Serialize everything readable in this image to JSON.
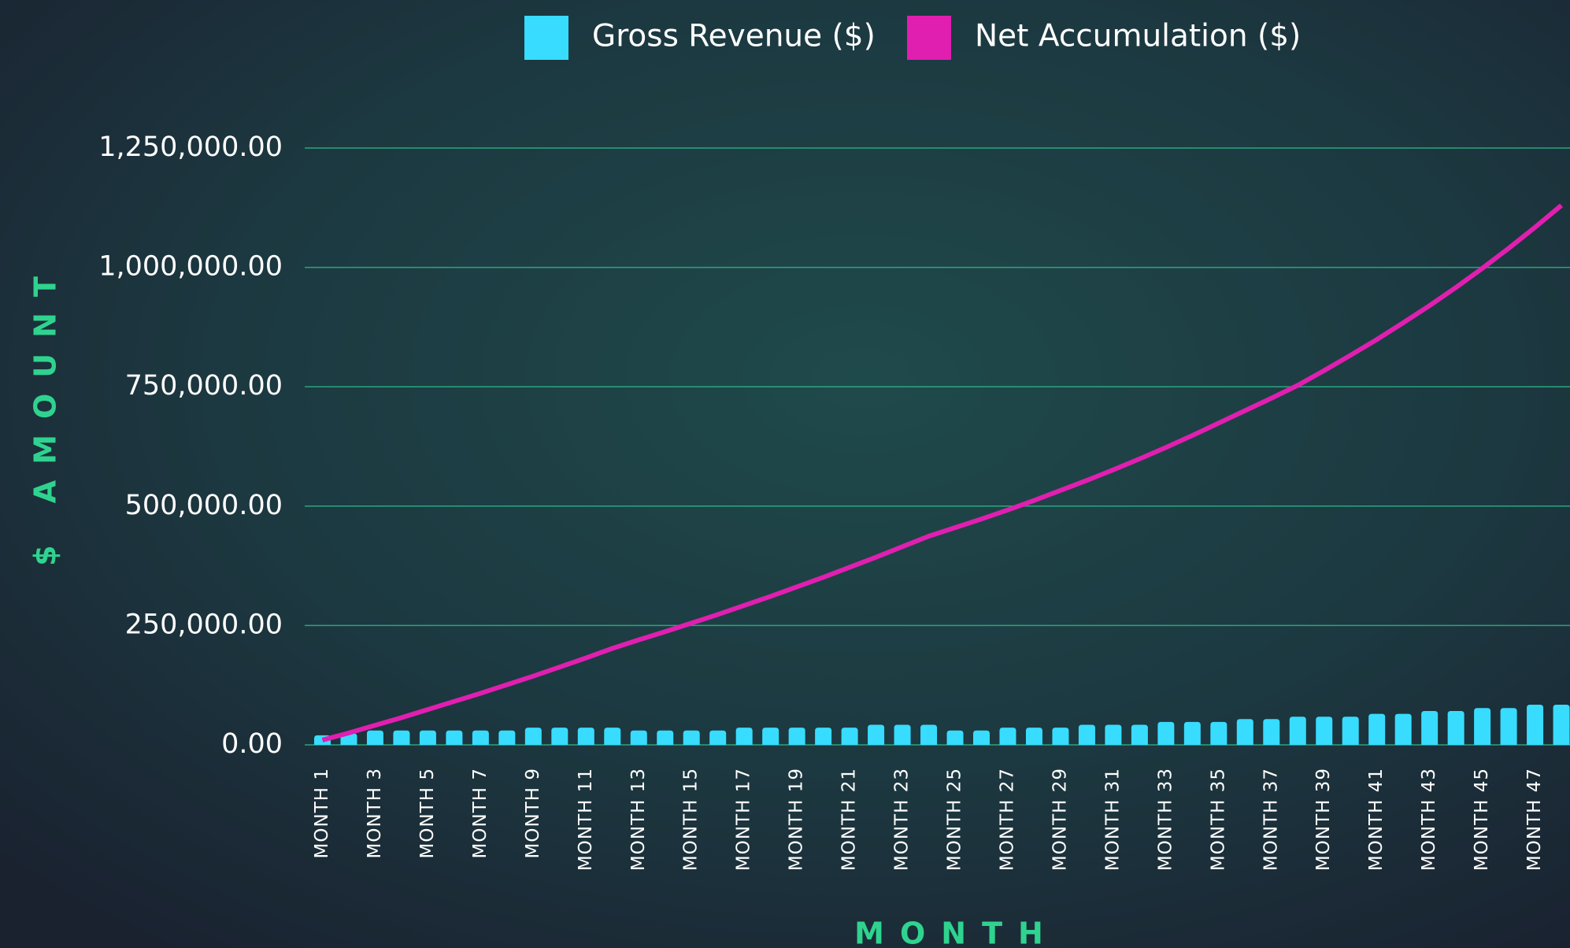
{
  "chart_data": {
    "type": "bar_line",
    "legend": "top",
    "grid": true,
    "x_label": "MONTH",
    "y_label": "$ AMOUNT",
    "categories": [
      "MONTH 1",
      null,
      "MONTH 3",
      null,
      "MONTH 5",
      null,
      "MONTH 7",
      null,
      "MONTH 9",
      null,
      "MONTH 11",
      null,
      "MONTH 13",
      null,
      "MONTH 15",
      null,
      "MONTH 17",
      null,
      "MONTH 19",
      null,
      "MONTH 21",
      null,
      "MONTH 23",
      null,
      "MONTH 25",
      null,
      "MONTH 27",
      null,
      "MONTH 29",
      null,
      "MONTH 31",
      null,
      "MONTH 33",
      null,
      "MONTH 35",
      null,
      "MONTH 37",
      null,
      "MONTH 39",
      null,
      "MONTH 41",
      null,
      "MONTH 43",
      null,
      "MONTH 45",
      null,
      "MONTH 47",
      null
    ],
    "series": [
      {
        "name": "Gross Revenue ($)",
        "type": "bar",
        "color": "#38dcff",
        "values": [
          20000,
          24000,
          30000,
          30000,
          30000,
          30000,
          30000,
          30000,
          36000,
          36000,
          36000,
          36000,
          30000,
          30000,
          30000,
          30000,
          36000,
          36000,
          36000,
          36000,
          36000,
          42000,
          42000,
          42000,
          30000,
          30000,
          36000,
          36000,
          36000,
          42000,
          42000,
          42000,
          48000,
          48000,
          48000,
          54000,
          54000,
          59000,
          59000,
          59000,
          65000,
          65000,
          71000,
          71000,
          77000,
          77000,
          84000,
          84000
        ]
      },
      {
        "name": "Net Accumulation ($)",
        "type": "line",
        "color": "#e01fb0",
        "values": [
          10000,
          25000,
          41000,
          57000,
          74000,
          91000,
          108000,
          126000,
          144000,
          163000,
          182000,
          202000,
          220000,
          237000,
          255000,
          273000,
          292000,
          311000,
          331000,
          351000,
          372000,
          393000,
          415000,
          437000,
          455000,
          473000,
          492000,
          512000,
          533000,
          554000,
          576000,
          599000,
          623000,
          648000,
          674000,
          700000,
          726000,
          753000,
          784000,
          816000,
          849000,
          884000,
          920000,
          958000,
          998000,
          1040000,
          1084000,
          1130000
        ]
      }
    ],
    "ylim": [
      0,
      1250000
    ],
    "yticks": [
      {
        "value": 0,
        "label": "0.00"
      },
      {
        "value": 250000,
        "label": "250,000.00"
      },
      {
        "value": 500000,
        "label": "500,000.00"
      },
      {
        "value": 750000,
        "label": "750,000.00"
      },
      {
        "value": 1000000,
        "label": "1,000,000.00"
      },
      {
        "value": 1250000,
        "label": "1,250,000.00"
      }
    ]
  }
}
